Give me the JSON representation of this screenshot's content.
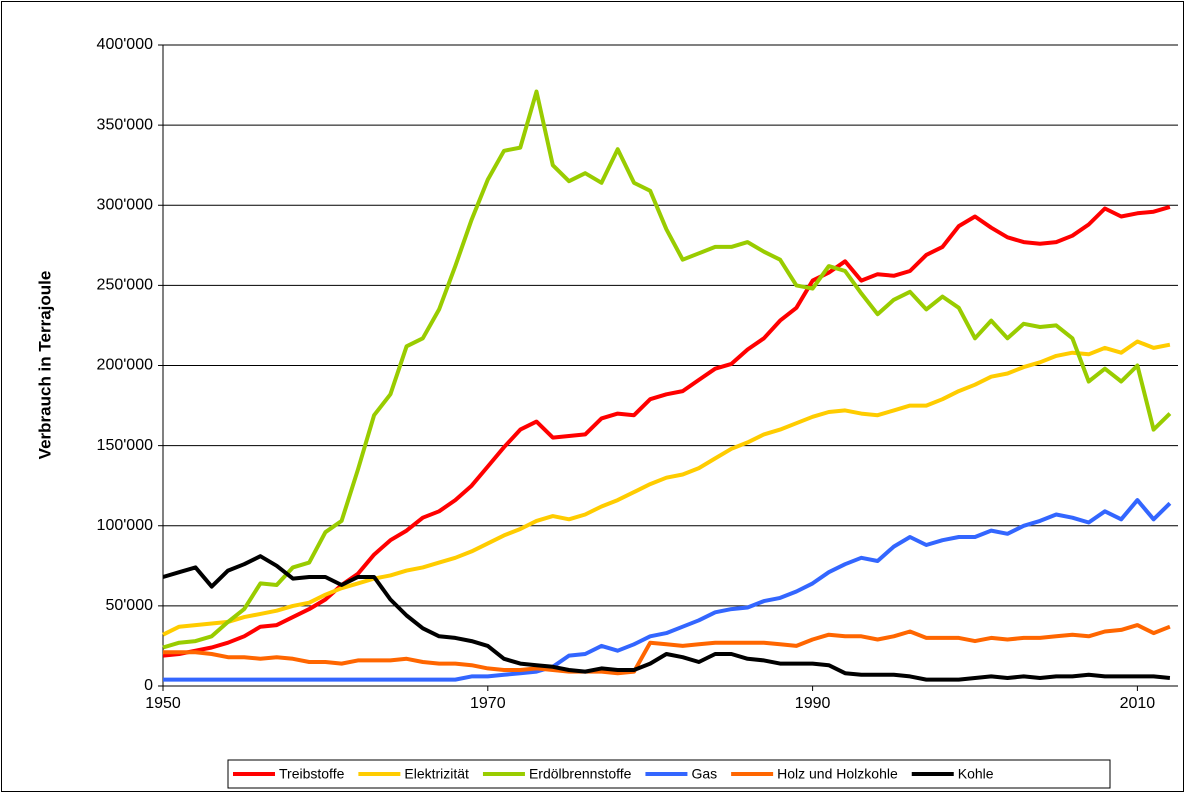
{
  "chart_data": {
    "type": "line",
    "y_label": "Verbrauch in Terrajoule",
    "x": [
      1950,
      1951,
      1952,
      1953,
      1954,
      1955,
      1956,
      1957,
      1958,
      1959,
      1960,
      1961,
      1962,
      1963,
      1964,
      1965,
      1966,
      1967,
      1968,
      1969,
      1970,
      1971,
      1972,
      1973,
      1974,
      1975,
      1976,
      1977,
      1978,
      1979,
      1980,
      1981,
      1982,
      1983,
      1984,
      1985,
      1986,
      1987,
      1988,
      1989,
      1990,
      1991,
      1992,
      1993,
      1994,
      1995,
      1996,
      1997,
      1998,
      1999,
      2000,
      2001,
      2002,
      2003,
      2004,
      2005,
      2006,
      2007,
      2008,
      2009,
      2010,
      2011,
      2012
    ],
    "xlim": [
      1950,
      2012.5
    ],
    "xticks": [
      1950,
      1970,
      1990,
      2010
    ],
    "ylim": [
      0,
      400000
    ],
    "yticks": [
      0,
      {
        "value": 50000,
        "label": "50'000"
      },
      {
        "value": 100000,
        "label": "100'000"
      },
      {
        "value": 150000,
        "label": "150'000"
      },
      {
        "value": 200000,
        "label": "200'000"
      },
      {
        "value": 250000,
        "label": "250'000"
      },
      {
        "value": 300000,
        "label": "300'000"
      },
      {
        "value": 350000,
        "label": "350'000"
      },
      {
        "value": 400000,
        "label": "400'000"
      }
    ],
    "grid": true,
    "legend": "bottom",
    "series": [
      {
        "name": "Treibstoffe",
        "color": "#ff0000",
        "values": [
          19000,
          20000,
          22000,
          24000,
          27000,
          31000,
          37000,
          38000,
          43000,
          48000,
          54000,
          63000,
          70000,
          82000,
          91000,
          97000,
          105000,
          109000,
          116000,
          125000,
          137000,
          149000,
          160000,
          165000,
          155000,
          156000,
          157000,
          167000,
          170000,
          169000,
          179000,
          182000,
          184000,
          191000,
          198000,
          201000,
          210000,
          217000,
          228000,
          236000,
          253000,
          258000,
          265000,
          253000,
          257000,
          256000,
          259000,
          269000,
          274000,
          287000,
          293000,
          286000,
          280000,
          277000,
          276000,
          277000,
          281000,
          288000,
          298000,
          293000,
          295000,
          296000,
          299000
        ]
      },
      {
        "name": "Elektrizität",
        "color": "#ffcc00",
        "values": [
          32000,
          37000,
          38000,
          39000,
          40000,
          43000,
          45000,
          47000,
          50000,
          52000,
          57000,
          61000,
          64000,
          67000,
          69000,
          72000,
          74000,
          77000,
          80000,
          84000,
          89000,
          94000,
          98000,
          103000,
          106000,
          104000,
          107000,
          112000,
          116000,
          121000,
          126000,
          130000,
          132000,
          136000,
          142000,
          148000,
          152000,
          157000,
          160000,
          164000,
          168000,
          171000,
          172000,
          170000,
          169000,
          172000,
          175000,
          175000,
          179000,
          184000,
          188000,
          193000,
          195000,
          199000,
          202000,
          206000,
          208000,
          207000,
          211000,
          208000,
          215000,
          211000,
          213000
        ]
      },
      {
        "name": "Erdölbrennstoffe",
        "color": "#99cc00",
        "values": [
          24000,
          27000,
          28000,
          31000,
          40000,
          48000,
          64000,
          63000,
          74000,
          77000,
          96000,
          103000,
          135000,
          169000,
          182000,
          212000,
          217000,
          235000,
          262000,
          291000,
          316000,
          334000,
          336000,
          371000,
          325000,
          315000,
          320000,
          314000,
          335000,
          314000,
          309000,
          285000,
          266000,
          270000,
          274000,
          274000,
          277000,
          271000,
          266000,
          250000,
          248000,
          262000,
          259000,
          245000,
          232000,
          241000,
          246000,
          235000,
          243000,
          236000,
          217000,
          228000,
          217000,
          226000,
          224000,
          225000,
          217000,
          190000,
          198000,
          190000,
          200000,
          160000,
          170000
        ]
      },
      {
        "name": "Gas",
        "color": "#3366ff",
        "values": [
          4000,
          4000,
          4000,
          4000,
          4000,
          4000,
          4000,
          4000,
          4000,
          4000,
          4000,
          4000,
          4000,
          4000,
          4000,
          4000,
          4000,
          4000,
          4000,
          6000,
          6000,
          7000,
          8000,
          9000,
          12000,
          19000,
          20000,
          25000,
          22000,
          26000,
          31000,
          33000,
          37000,
          41000,
          46000,
          48000,
          49000,
          53000,
          55000,
          59000,
          64000,
          71000,
          76000,
          80000,
          78000,
          87000,
          93000,
          88000,
          91000,
          93000,
          93000,
          97000,
          95000,
          100000,
          103000,
          107000,
          105000,
          102000,
          109000,
          104000,
          116000,
          104000,
          114000
        ]
      },
      {
        "name": "Holz und Holzkohle",
        "color": "#ff6600",
        "values": [
          21000,
          21000,
          21000,
          20000,
          18000,
          18000,
          17000,
          18000,
          17000,
          15000,
          15000,
          14000,
          16000,
          16000,
          16000,
          17000,
          15000,
          14000,
          14000,
          13000,
          11000,
          10000,
          10000,
          11000,
          10000,
          9000,
          9000,
          9000,
          8000,
          9000,
          27000,
          26000,
          25000,
          26000,
          27000,
          27000,
          27000,
          27000,
          26000,
          25000,
          29000,
          32000,
          31000,
          31000,
          29000,
          31000,
          34000,
          30000,
          30000,
          30000,
          28000,
          30000,
          29000,
          30000,
          30000,
          31000,
          32000,
          31000,
          34000,
          35000,
          38000,
          33000,
          37000
        ]
      },
      {
        "name": "Kohle",
        "color": "#000000",
        "values": [
          68000,
          71000,
          74000,
          62000,
          72000,
          76000,
          81000,
          75000,
          67000,
          68000,
          68000,
          63000,
          68000,
          68000,
          54000,
          44000,
          36000,
          31000,
          30000,
          28000,
          25000,
          17000,
          14000,
          13000,
          12000,
          10000,
          9000,
          11000,
          10000,
          10000,
          14000,
          20000,
          18000,
          15000,
          20000,
          20000,
          17000,
          16000,
          14000,
          14000,
          14000,
          13000,
          8000,
          7000,
          7000,
          7000,
          6000,
          4000,
          4000,
          4000,
          5000,
          6000,
          5000,
          6000,
          5000,
          6000,
          6000,
          7000,
          6000,
          6000,
          6000,
          6000,
          5000
        ]
      }
    ]
  }
}
